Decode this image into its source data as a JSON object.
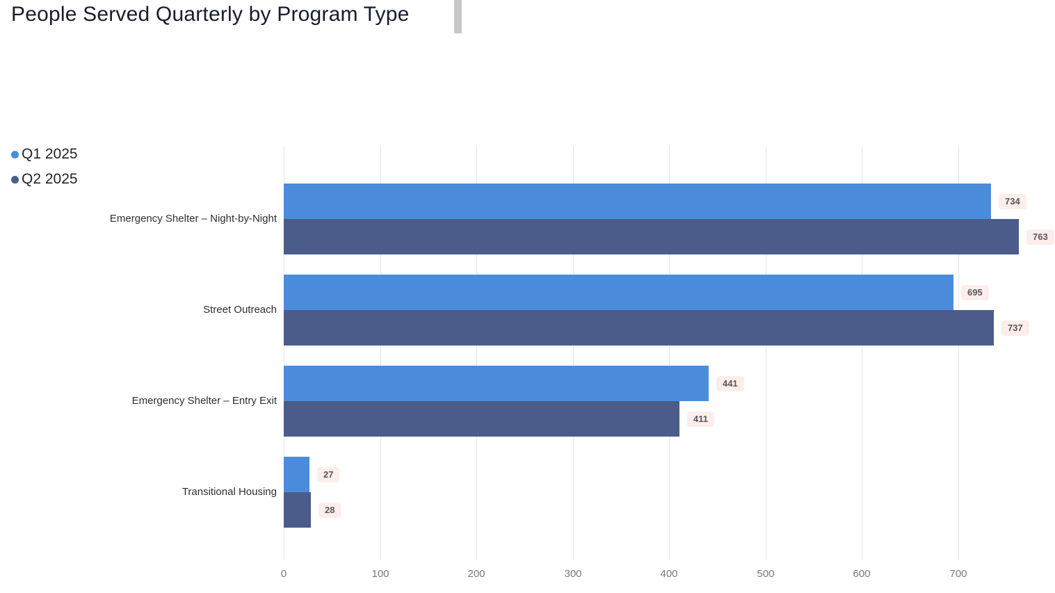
{
  "header": {
    "title": "People Served Quarterly by Program Type"
  },
  "legend": {
    "items": [
      {
        "label": "Q1 2025",
        "color": "#4a8cdb"
      },
      {
        "label": "Q2 2025",
        "color": "#4b5c8a"
      }
    ]
  },
  "chart_data": {
    "type": "bar",
    "orientation": "horizontal",
    "title": "People Served Quarterly by Program Type",
    "categories": [
      "Emergency Shelter – Night-by-Night",
      "Street Outreach",
      "Emergency Shelter – Entry Exit",
      "Transitional Housing"
    ],
    "series": [
      {
        "name": "Q1 2025",
        "color": "#4a8cdb",
        "values": [
          734,
          695,
          441,
          27
        ]
      },
      {
        "name": "Q2 2025",
        "color": "#4b5c8a",
        "values": [
          763,
          737,
          411,
          28
        ]
      }
    ],
    "x_ticks": [
      0,
      100,
      200,
      300,
      400,
      500,
      600,
      700
    ],
    "xlim": [
      0,
      800
    ],
    "xlabel": "",
    "ylabel": "",
    "grid": "vertical",
    "legend_position": "top-left",
    "data_labels": true,
    "data_label_values": {
      "Q1 2025": [
        "734",
        "695",
        "441",
        "27"
      ],
      "Q2 2025": [
        "763",
        "737",
        "411",
        "28"
      ]
    }
  }
}
